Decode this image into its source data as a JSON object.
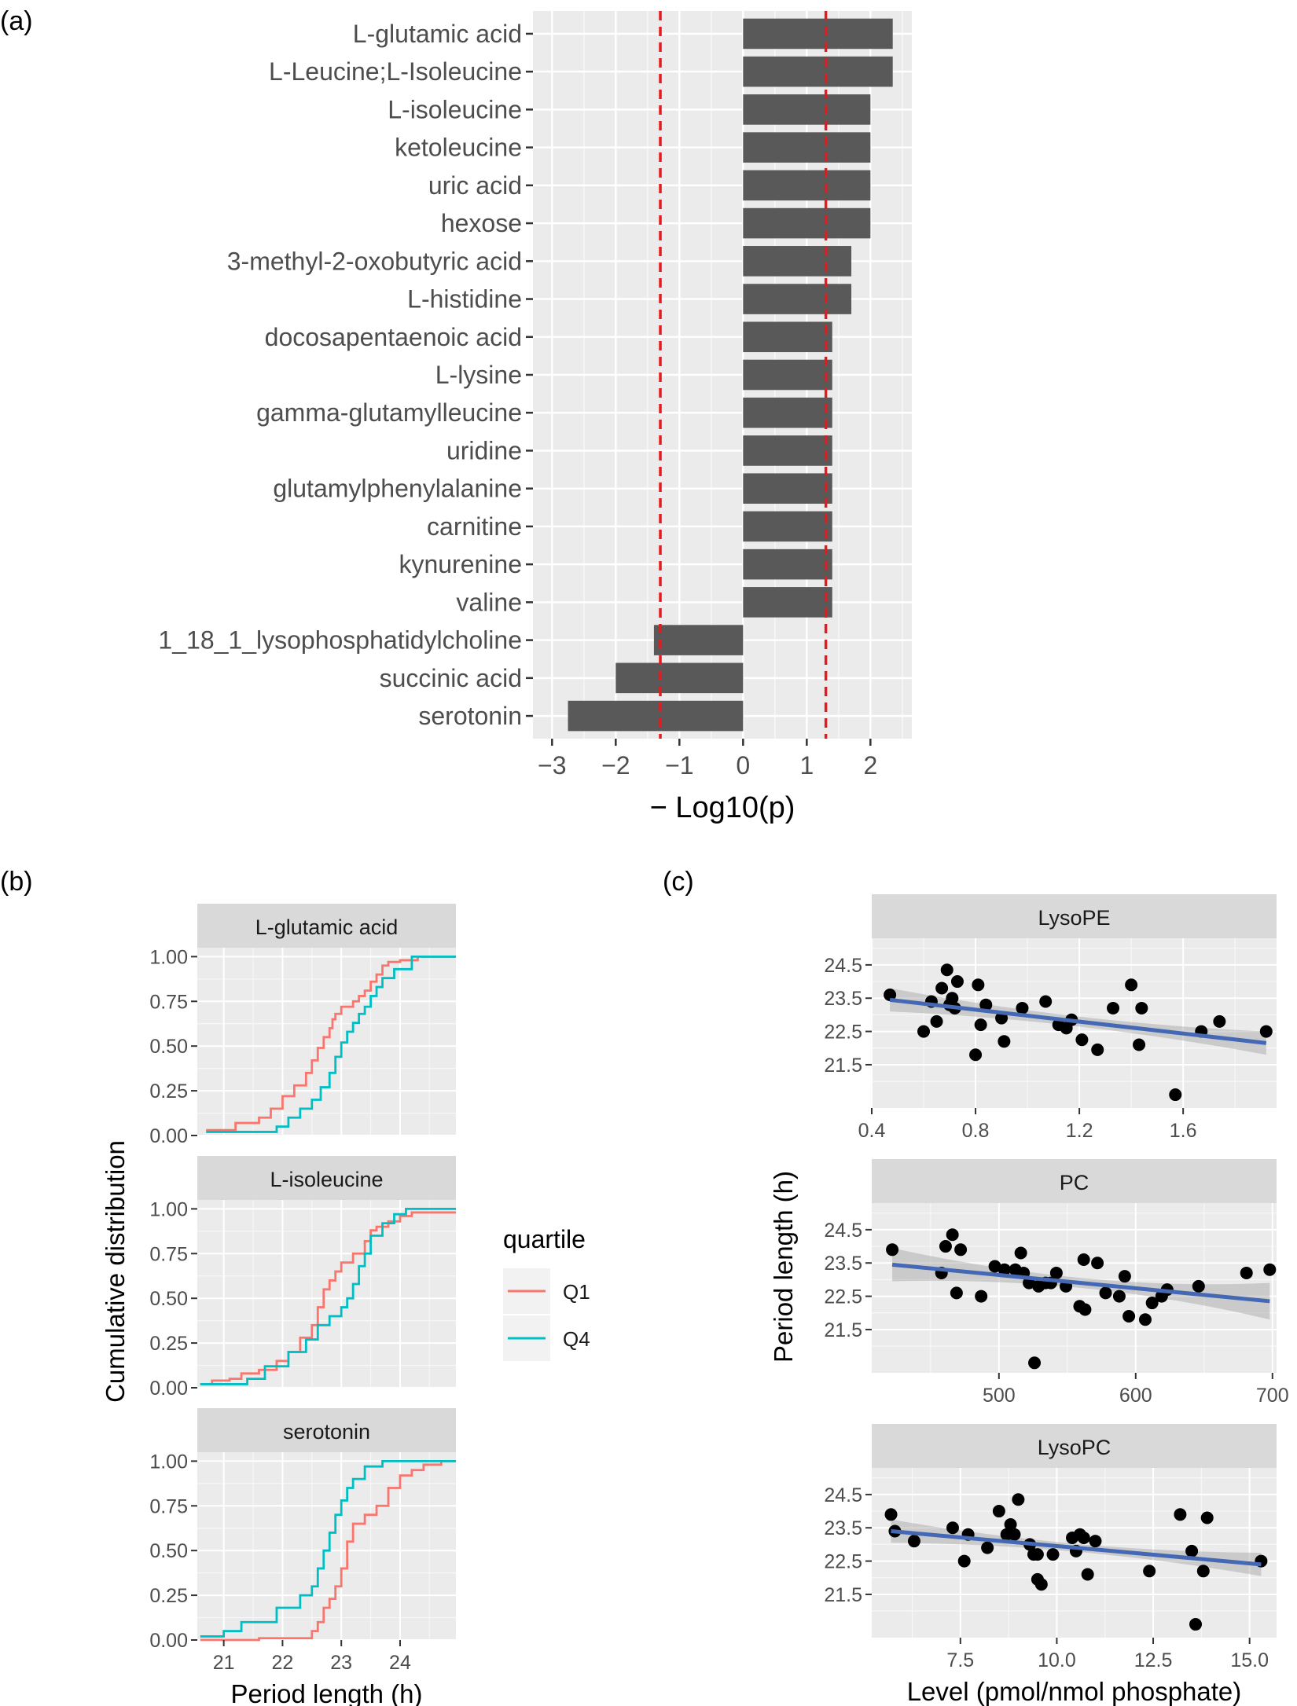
{
  "panel_labels": [
    "(a)",
    "(b)",
    "(c)"
  ],
  "chart_data": [
    {
      "type": "bar",
      "orientation": "horizontal",
      "panel": "(a)",
      "xlabel": "− Log10(p)",
      "ylabel": "",
      "xlim": [
        -3.3,
        2.65
      ],
      "xticks": [
        -3,
        -2,
        -1,
        0,
        1,
        2
      ],
      "reference_lines": [
        -1.3,
        1.3
      ],
      "reference_line_color": "#e41a1c",
      "bar_color": "#595959",
      "categories": [
        "L-glutamic acid",
        "L-Leucine;L-Isoleucine",
        "L-isoleucine ",
        "ketoleucine",
        "uric acid",
        "hexose",
        "3-methyl-2-oxobutyric acid",
        "L-histidine",
        "docosapentaenoic acid",
        "L-lysine ",
        "gamma-glutamylleucine",
        "uridine",
        "glutamylphenylalanine",
        "carnitine",
        "kynurenine",
        "valine",
        "1_18_1_lysophosphatidylcholine",
        "succinic acid",
        "serotonin "
      ],
      "values": [
        2.35,
        2.35,
        2.0,
        2.0,
        2.0,
        2.0,
        1.7,
        1.7,
        1.4,
        1.4,
        1.4,
        1.4,
        1.4,
        1.4,
        1.4,
        1.4,
        -1.4,
        -2.0,
        -2.75
      ],
      "grid": true
    },
    {
      "type": "line",
      "subtype": "step-ecdf",
      "panel": "(b)",
      "xlabel": "Period length (h)",
      "ylabel": "Cumulative distribution",
      "xlim": [
        20.55,
        24.95
      ],
      "ylim": [
        0,
        1.05
      ],
      "xticks": [
        21,
        22,
        23,
        24
      ],
      "yticks": [
        "0.00",
        "0.25",
        "0.50",
        "0.75",
        "1.00"
      ],
      "legend": {
        "title": "quartile",
        "position": "right",
        "entries": [
          {
            "label": "Q1",
            "color": "#f8766d"
          },
          {
            "label": "Q4",
            "color": "#00bfc4"
          }
        ]
      },
      "facets": [
        {
          "label": "L-glutamic acid",
          "series": [
            {
              "name": "Q1",
              "x": [
                20.7,
                21.2,
                21.6,
                21.8,
                22.0,
                22.2,
                22.4,
                22.5,
                22.6,
                22.7,
                22.8,
                22.85,
                22.9,
                23.0,
                23.2,
                23.3,
                23.4,
                23.5,
                23.6,
                23.7,
                23.8,
                24.0,
                24.3
              ],
              "y": [
                0.03,
                0.07,
                0.1,
                0.15,
                0.22,
                0.28,
                0.35,
                0.42,
                0.49,
                0.55,
                0.6,
                0.65,
                0.68,
                0.72,
                0.75,
                0.78,
                0.81,
                0.86,
                0.9,
                0.95,
                0.97,
                0.98,
                1.0
              ]
            },
            {
              "name": "Q4",
              "x": [
                20.7,
                21.9,
                22.1,
                22.3,
                22.5,
                22.65,
                22.8,
                22.9,
                23.0,
                23.1,
                23.2,
                23.3,
                23.4,
                23.5,
                23.6,
                23.7,
                23.9,
                24.2,
                24.95
              ],
              "y": [
                0.02,
                0.05,
                0.1,
                0.15,
                0.2,
                0.27,
                0.35,
                0.44,
                0.52,
                0.58,
                0.63,
                0.68,
                0.72,
                0.78,
                0.83,
                0.88,
                0.93,
                1.0,
                1.0
              ]
            }
          ]
        },
        {
          "label": "L-isoleucine",
          "series": [
            {
              "name": "Q1",
              "x": [
                20.6,
                20.8,
                21.1,
                21.3,
                21.6,
                21.9,
                22.1,
                22.3,
                22.5,
                22.6,
                22.7,
                22.8,
                22.9,
                23.0,
                23.2,
                23.4,
                23.5,
                23.6,
                23.8,
                24.0,
                24.2,
                24.6
              ],
              "y": [
                0.02,
                0.04,
                0.05,
                0.08,
                0.1,
                0.15,
                0.2,
                0.28,
                0.35,
                0.45,
                0.55,
                0.6,
                0.65,
                0.7,
                0.75,
                0.82,
                0.88,
                0.9,
                0.93,
                0.96,
                0.98,
                0.98
              ]
            },
            {
              "name": "Q4",
              "x": [
                20.6,
                21.4,
                21.7,
                22.1,
                22.4,
                22.6,
                22.8,
                23.0,
                23.1,
                23.2,
                23.3,
                23.4,
                23.5,
                23.7,
                23.9,
                24.1,
                24.95
              ],
              "y": [
                0.02,
                0.05,
                0.12,
                0.2,
                0.27,
                0.35,
                0.4,
                0.45,
                0.5,
                0.58,
                0.68,
                0.75,
                0.85,
                0.92,
                0.97,
                1.0,
                1.0
              ]
            }
          ]
        },
        {
          "label": "serotonin",
          "series": [
            {
              "name": "Q1",
              "x": [
                20.6,
                21.6,
                22.5,
                22.6,
                22.7,
                22.8,
                22.9,
                23.0,
                23.1,
                23.2,
                23.4,
                23.6,
                23.8,
                24.0,
                24.2,
                24.4,
                24.7
              ],
              "y": [
                0.0,
                0.01,
                0.05,
                0.1,
                0.18,
                0.23,
                0.3,
                0.4,
                0.55,
                0.65,
                0.7,
                0.75,
                0.85,
                0.92,
                0.95,
                0.98,
                1.0
              ]
            },
            {
              "name": "Q4",
              "x": [
                20.6,
                21.0,
                21.3,
                21.9,
                22.3,
                22.5,
                22.6,
                22.7,
                22.8,
                22.9,
                23.0,
                23.1,
                23.2,
                23.4,
                23.7,
                24.95
              ],
              "y": [
                0.02,
                0.05,
                0.1,
                0.18,
                0.25,
                0.3,
                0.4,
                0.5,
                0.6,
                0.7,
                0.78,
                0.85,
                0.9,
                0.97,
                1.0,
                1.0
              ]
            }
          ]
        }
      ]
    },
    {
      "type": "scatter",
      "panel": "(c)",
      "xlabel": "Level (pmol/nmol phosphate)",
      "ylabel": "Period length (h)",
      "ylim": [
        20.2,
        25.3
      ],
      "yticks": [
        21.5,
        22.5,
        23.5,
        24.5
      ],
      "point_color": "#000000",
      "fit_color": "#4468b3",
      "facets": [
        {
          "label": "LysoPE",
          "xlim": [
            0.4,
            1.96
          ],
          "xticks": [
            "0.4",
            "0.8",
            "1.2",
            "1.6"
          ],
          "fit": {
            "x": [
              0.47,
              1.92
            ],
            "y": [
              23.45,
              22.15
            ],
            "band": [
              0.35,
              0.15,
              0.35
            ]
          },
          "points": [
            [
              0.47,
              23.6
            ],
            [
              0.6,
              22.5
            ],
            [
              0.63,
              23.4
            ],
            [
              0.65,
              22.8
            ],
            [
              0.67,
              23.8
            ],
            [
              0.69,
              24.35
            ],
            [
              0.7,
              23.3
            ],
            [
              0.71,
              23.5
            ],
            [
              0.72,
              23.2
            ],
            [
              0.73,
              24.0
            ],
            [
              0.8,
              21.8
            ],
            [
              0.81,
              23.9
            ],
            [
              0.82,
              22.7
            ],
            [
              0.84,
              23.3
            ],
            [
              0.9,
              22.9
            ],
            [
              0.91,
              22.2
            ],
            [
              0.98,
              23.2
            ],
            [
              1.07,
              23.4
            ],
            [
              1.12,
              22.7
            ],
            [
              1.15,
              22.6
            ],
            [
              1.17,
              22.85
            ],
            [
              1.21,
              22.25
            ],
            [
              1.27,
              21.95
            ],
            [
              1.33,
              23.2
            ],
            [
              1.4,
              23.9
            ],
            [
              1.43,
              22.1
            ],
            [
              1.44,
              23.2
            ],
            [
              1.57,
              20.6
            ],
            [
              1.67,
              22.5
            ],
            [
              1.74,
              22.8
            ],
            [
              1.92,
              22.5
            ]
          ]
        },
        {
          "label": "PC",
          "xlim": [
            407,
            703
          ],
          "xticks": [
            "500",
            "600",
            "700"
          ],
          "fit": {
            "x": [
              422,
              698
            ],
            "y": [
              23.45,
              22.35
            ],
            "band": [
              0.5,
              0.15,
              0.55
            ]
          },
          "points": [
            [
              422,
              23.9
            ],
            [
              458,
              23.2
            ],
            [
              461,
              24.0
            ],
            [
              466,
              24.35
            ],
            [
              469,
              22.6
            ],
            [
              472,
              23.9
            ],
            [
              487,
              22.5
            ],
            [
              497,
              23.4
            ],
            [
              504,
              23.3
            ],
            [
              512,
              23.3
            ],
            [
              516,
              23.8
            ],
            [
              518,
              23.2
            ],
            [
              522,
              22.9
            ],
            [
              526,
              20.5
            ],
            [
              529,
              22.8
            ],
            [
              534,
              22.9
            ],
            [
              538,
              22.9
            ],
            [
              542,
              23.2
            ],
            [
              549,
              22.8
            ],
            [
              559,
              22.2
            ],
            [
              562,
              23.6
            ],
            [
              563,
              22.1
            ],
            [
              572,
              23.5
            ],
            [
              578,
              22.6
            ],
            [
              588,
              22.5
            ],
            [
              592,
              23.1
            ],
            [
              595,
              21.9
            ],
            [
              607,
              21.8
            ],
            [
              612,
              22.3
            ],
            [
              619,
              22.5
            ],
            [
              623,
              22.7
            ],
            [
              646,
              22.8
            ],
            [
              681,
              23.2
            ],
            [
              698,
              23.3
            ]
          ]
        },
        {
          "label": "LysoPC",
          "xlim": [
            5.2,
            15.7
          ],
          "xticks": [
            "7.5",
            "10.0",
            "12.5",
            "15.0"
          ],
          "fit": {
            "x": [
              5.7,
              15.3
            ],
            "y": [
              23.4,
              22.4
            ],
            "band": [
              0.35,
              0.12,
              0.35
            ]
          },
          "points": [
            [
              5.7,
              23.9
            ],
            [
              5.8,
              23.4
            ],
            [
              6.3,
              23.1
            ],
            [
              7.3,
              23.5
            ],
            [
              7.6,
              22.5
            ],
            [
              7.7,
              23.3
            ],
            [
              8.2,
              22.9
            ],
            [
              8.5,
              24.0
            ],
            [
              8.7,
              23.3
            ],
            [
              8.8,
              23.6
            ],
            [
              8.9,
              23.3
            ],
            [
              9.0,
              24.35
            ],
            [
              9.3,
              23.0
            ],
            [
              9.4,
              22.7
            ],
            [
              9.5,
              22.7
            ],
            [
              9.5,
              21.95
            ],
            [
              9.6,
              21.8
            ],
            [
              9.9,
              22.7
            ],
            [
              10.4,
              23.2
            ],
            [
              10.5,
              22.8
            ],
            [
              10.6,
              23.3
            ],
            [
              10.7,
              23.2
            ],
            [
              10.8,
              22.1
            ],
            [
              11.0,
              23.1
            ],
            [
              12.4,
              22.2
            ],
            [
              13.2,
              23.9
            ],
            [
              13.5,
              22.8
            ],
            [
              13.6,
              20.6
            ],
            [
              13.8,
              22.2
            ],
            [
              13.9,
              23.8
            ],
            [
              15.3,
              22.5
            ]
          ]
        }
      ]
    }
  ]
}
